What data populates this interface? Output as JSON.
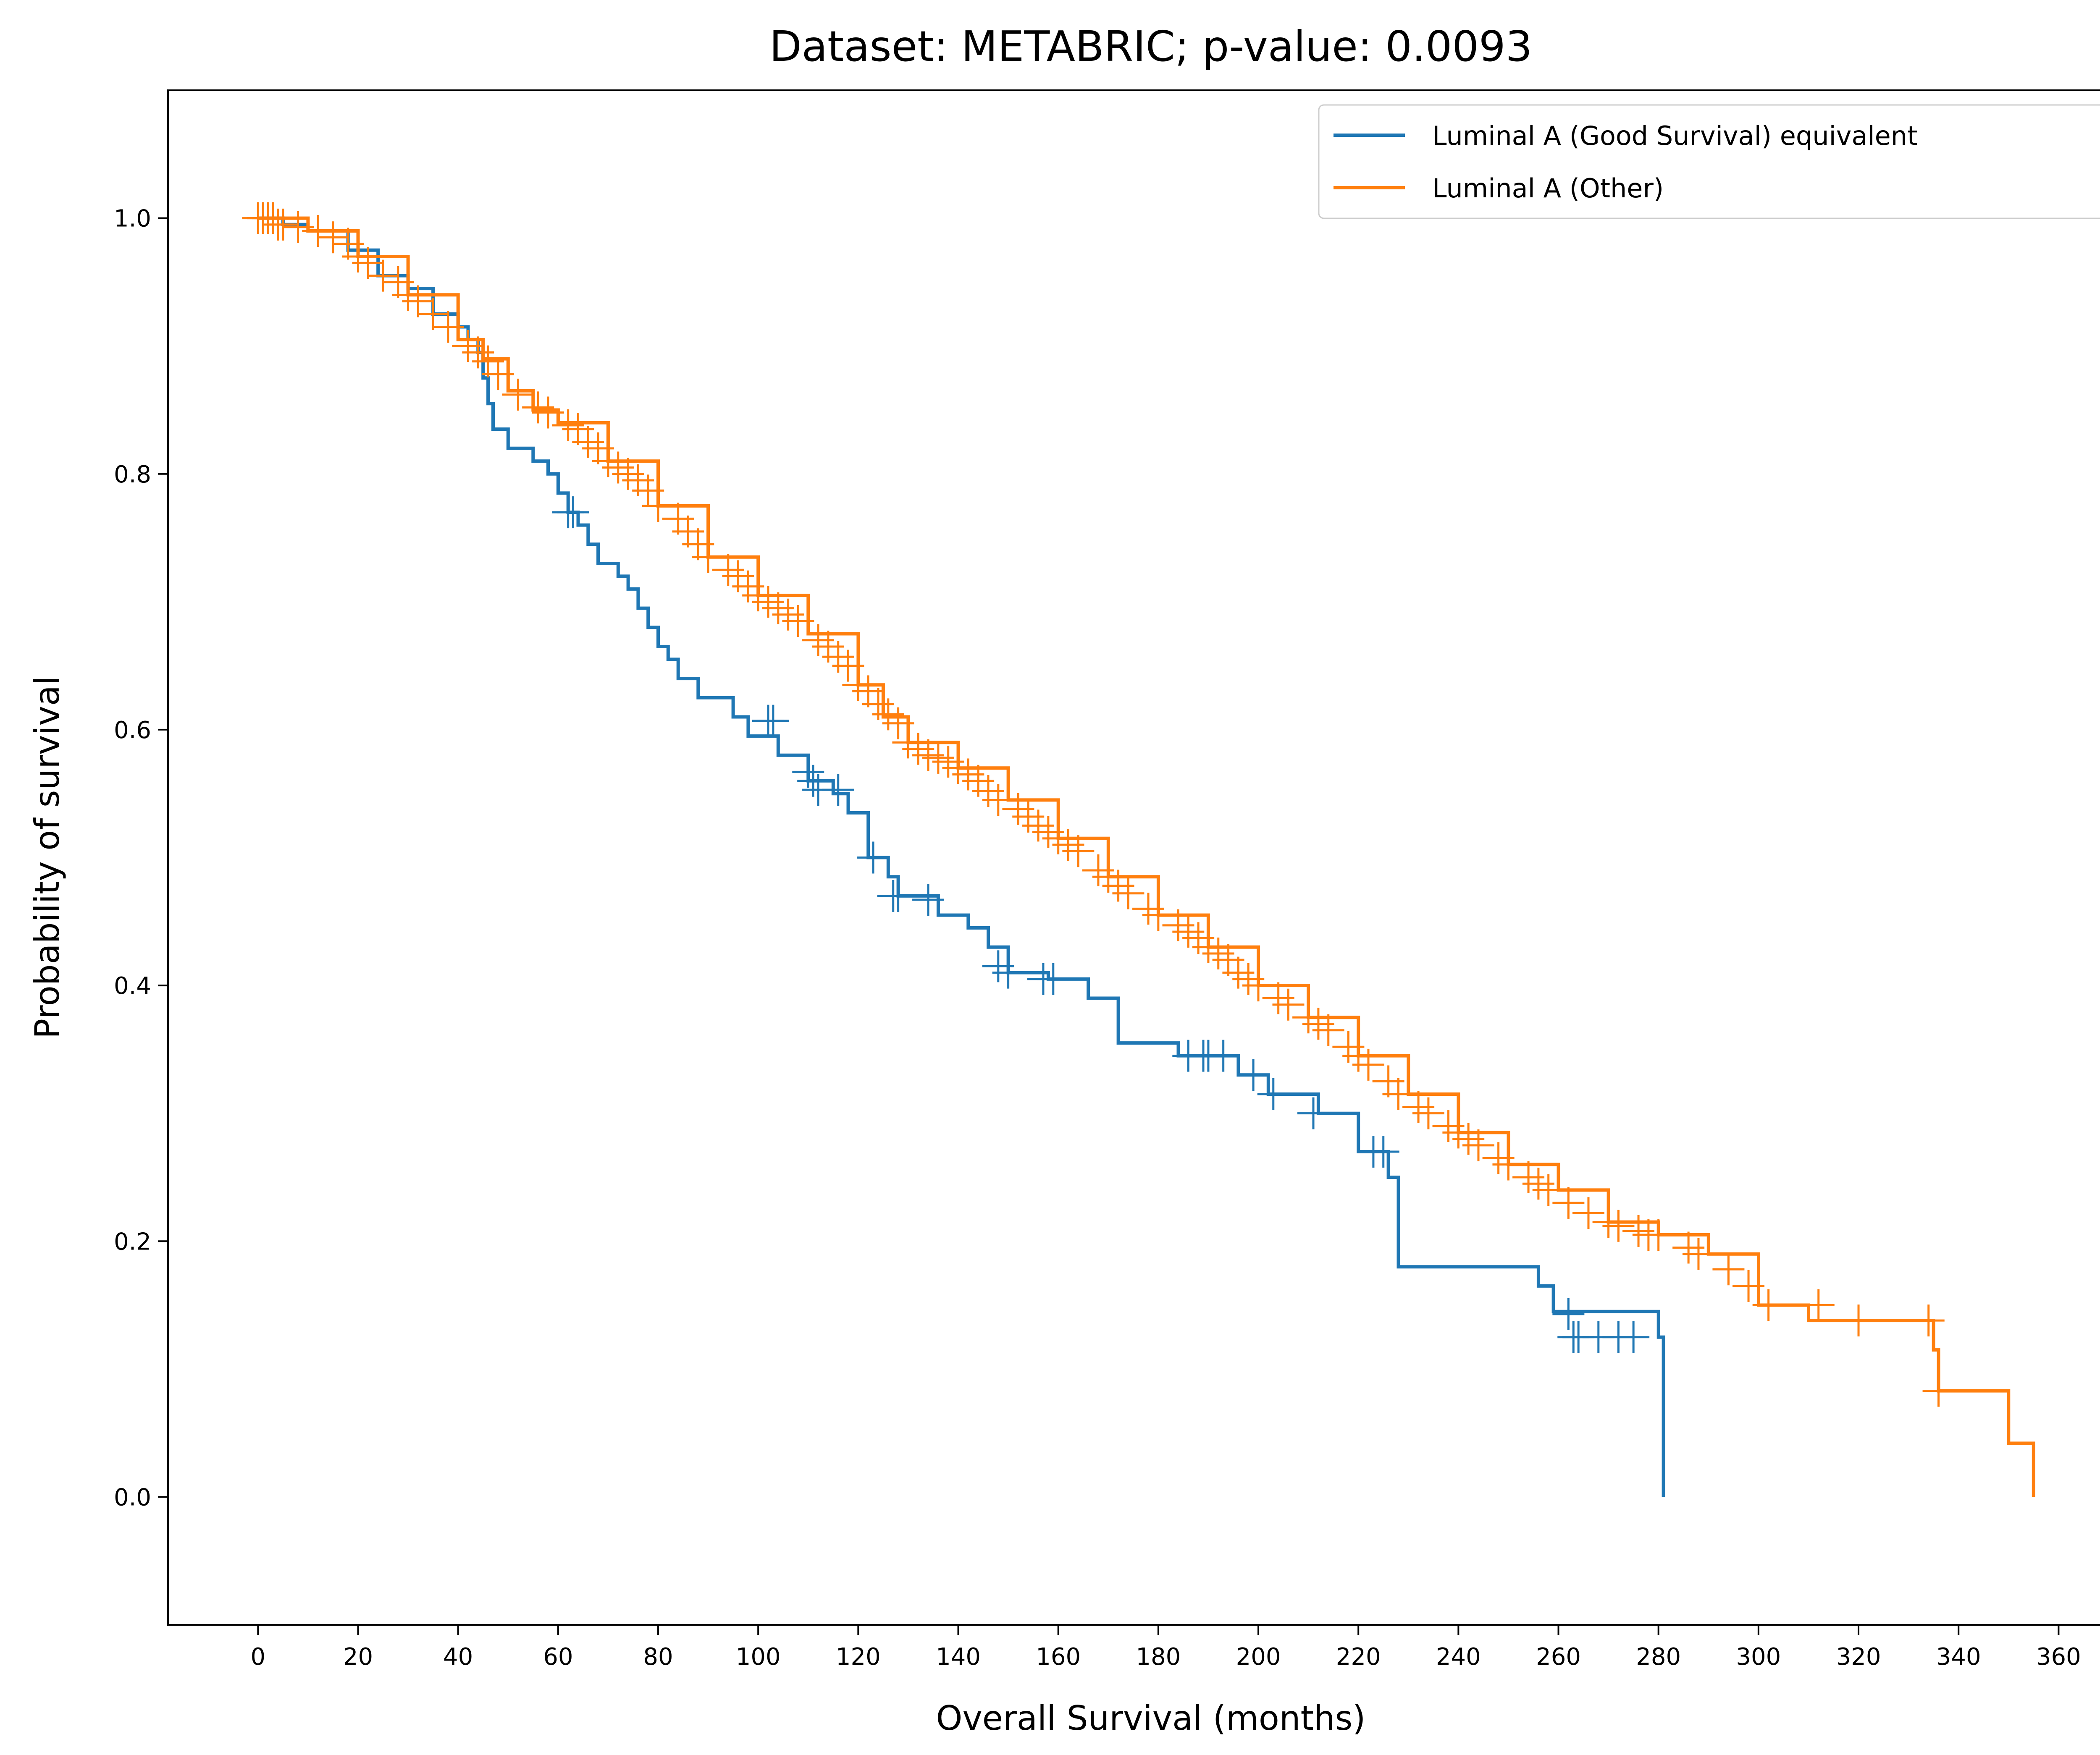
{
  "chart_data": {
    "type": "line",
    "title": "Dataset: METABRIC; p-value: 0.0093",
    "xlabel": "Overall Survival (months)",
    "ylabel": "Probability of survival",
    "xlim": [
      -18,
      375
    ],
    "ylim": [
      -0.1,
      1.1
    ],
    "xticks": [
      0,
      20,
      40,
      60,
      80,
      100,
      120,
      140,
      160,
      180,
      200,
      220,
      240,
      260,
      280,
      300,
      320,
      340,
      360
    ],
    "yticks": [
      0.0,
      0.2,
      0.4,
      0.6,
      0.8,
      1.0
    ],
    "ytick_labels": [
      "0.0",
      "0.2",
      "0.4",
      "0.6",
      "0.8",
      "1.0"
    ],
    "grid": false,
    "legend_position": "top-right",
    "series": [
      {
        "name": "Luminal A (Good Survival) equivalent",
        "color": "#1f77b4",
        "x": [
          0,
          2,
          5,
          10,
          18,
          24,
          30,
          35,
          40,
          42,
          44,
          45,
          46,
          47,
          50,
          55,
          58,
          60,
          62,
          64,
          66,
          68,
          72,
          74,
          76,
          78,
          80,
          82,
          84,
          88,
          95,
          98,
          104,
          110,
          115,
          118,
          122,
          126,
          128,
          136,
          142,
          146,
          150,
          158,
          166,
          172,
          184,
          196,
          202,
          212,
          220,
          226,
          228,
          256,
          259,
          280,
          281
        ],
        "y": [
          1.0,
          1.0,
          0.995,
          0.99,
          0.975,
          0.955,
          0.945,
          0.925,
          0.915,
          0.905,
          0.895,
          0.875,
          0.855,
          0.835,
          0.82,
          0.81,
          0.8,
          0.785,
          0.77,
          0.76,
          0.745,
          0.73,
          0.72,
          0.71,
          0.695,
          0.68,
          0.665,
          0.655,
          0.64,
          0.625,
          0.61,
          0.595,
          0.58,
          0.56,
          0.55,
          0.535,
          0.5,
          0.485,
          0.47,
          0.455,
          0.445,
          0.43,
          0.41,
          0.405,
          0.39,
          0.355,
          0.345,
          0.33,
          0.315,
          0.3,
          0.27,
          0.25,
          0.18,
          0.165,
          0.145,
          0.125,
          0.0
        ],
        "censored_x": [
          62,
          63,
          102,
          103,
          110,
          111,
          112,
          116,
          123,
          127,
          128,
          134,
          148,
          150,
          157,
          159,
          186,
          189,
          190,
          193,
          199,
          203,
          211,
          223,
          225,
          262,
          263,
          264,
          268,
          272,
          275
        ],
        "censored_y": [
          0.77,
          0.77,
          0.607,
          0.607,
          0.567,
          0.56,
          0.553,
          0.553,
          0.5,
          0.47,
          0.47,
          0.467,
          0.415,
          0.41,
          0.405,
          0.405,
          0.345,
          0.345,
          0.345,
          0.345,
          0.33,
          0.315,
          0.3,
          0.27,
          0.27,
          0.143,
          0.125,
          0.125,
          0.125,
          0.125,
          0.125
        ]
      },
      {
        "name": "Luminal A (Other)",
        "color": "#ff7f0e",
        "x": [
          0,
          10,
          20,
          30,
          40,
          45,
          50,
          55,
          60,
          70,
          80,
          90,
          100,
          110,
          120,
          125,
          130,
          140,
          150,
          160,
          170,
          180,
          190,
          200,
          210,
          220,
          230,
          240,
          250,
          260,
          270,
          280,
          290,
          300,
          310,
          330,
          335,
          336,
          350,
          355
        ],
        "y": [
          1.0,
          0.99,
          0.97,
          0.94,
          0.905,
          0.89,
          0.865,
          0.85,
          0.84,
          0.81,
          0.775,
          0.735,
          0.705,
          0.675,
          0.635,
          0.61,
          0.59,
          0.57,
          0.545,
          0.515,
          0.485,
          0.455,
          0.43,
          0.4,
          0.375,
          0.345,
          0.315,
          0.285,
          0.26,
          0.24,
          0.215,
          0.205,
          0.19,
          0.15,
          0.138,
          0.138,
          0.115,
          0.083,
          0.042,
          0.0
        ],
        "censored_x": [
          0,
          1,
          2,
          3,
          4,
          5,
          8,
          12,
          15,
          18,
          20,
          22,
          25,
          28,
          30,
          32,
          35,
          38,
          42,
          44,
          46,
          48,
          52,
          56,
          58,
          62,
          64,
          66,
          68,
          70,
          72,
          74,
          76,
          78,
          80,
          84,
          86,
          88,
          90,
          94,
          96,
          98,
          100,
          102,
          104,
          106,
          108,
          112,
          114,
          116,
          118,
          120,
          122,
          124,
          126,
          128,
          130,
          132,
          134,
          136,
          138,
          140,
          142,
          144,
          146,
          148,
          152,
          154,
          156,
          158,
          160,
          162,
          164,
          168,
          170,
          172,
          174,
          178,
          180,
          184,
          186,
          188,
          190,
          192,
          194,
          196,
          198,
          200,
          204,
          206,
          210,
          212,
          214,
          218,
          220,
          222,
          226,
          228,
          232,
          234,
          238,
          240,
          242,
          244,
          248,
          250,
          254,
          256,
          258,
          262,
          266,
          270,
          272,
          276,
          278,
          280,
          286,
          288,
          294,
          298,
          302,
          312,
          320,
          334,
          336
        ],
        "censored_y": [
          1.0,
          1.0,
          1.0,
          1.0,
          0.995,
          0.995,
          0.993,
          0.99,
          0.985,
          0.98,
          0.97,
          0.965,
          0.955,
          0.95,
          0.94,
          0.935,
          0.925,
          0.915,
          0.9,
          0.895,
          0.888,
          0.878,
          0.862,
          0.852,
          0.848,
          0.838,
          0.835,
          0.825,
          0.82,
          0.81,
          0.805,
          0.8,
          0.795,
          0.787,
          0.775,
          0.765,
          0.755,
          0.745,
          0.735,
          0.725,
          0.72,
          0.712,
          0.705,
          0.7,
          0.695,
          0.69,
          0.685,
          0.67,
          0.665,
          0.657,
          0.65,
          0.635,
          0.63,
          0.62,
          0.612,
          0.605,
          0.59,
          0.585,
          0.58,
          0.578,
          0.575,
          0.57,
          0.565,
          0.56,
          0.552,
          0.545,
          0.538,
          0.532,
          0.525,
          0.52,
          0.515,
          0.51,
          0.505,
          0.49,
          0.485,
          0.478,
          0.472,
          0.46,
          0.455,
          0.447,
          0.442,
          0.437,
          0.43,
          0.425,
          0.42,
          0.41,
          0.405,
          0.4,
          0.39,
          0.385,
          0.375,
          0.37,
          0.365,
          0.352,
          0.345,
          0.338,
          0.325,
          0.315,
          0.305,
          0.3,
          0.29,
          0.285,
          0.28,
          0.275,
          0.265,
          0.26,
          0.25,
          0.245,
          0.24,
          0.23,
          0.222,
          0.215,
          0.212,
          0.208,
          0.205,
          0.205,
          0.195,
          0.19,
          0.178,
          0.165,
          0.15,
          0.15,
          0.138,
          0.138,
          0.083
        ]
      }
    ]
  }
}
